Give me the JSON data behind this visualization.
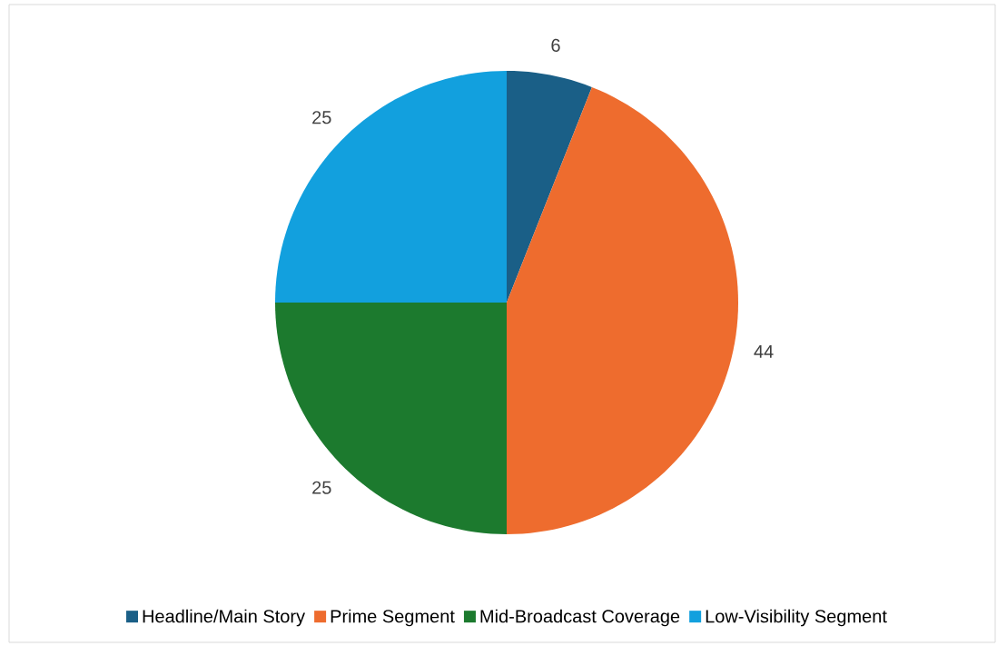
{
  "chart_data": {
    "type": "pie",
    "categories": [
      "Headline/Main Story",
      "Prime Segment",
      "Mid-Broadcast Coverage",
      "Low-Visibility Segment"
    ],
    "values": [
      6,
      44,
      25,
      25
    ],
    "colors": [
      "#1a5f87",
      "#ee6c2e",
      "#1c7a2e",
      "#12a0de"
    ],
    "data_labels": true,
    "legend": "bottom"
  }
}
